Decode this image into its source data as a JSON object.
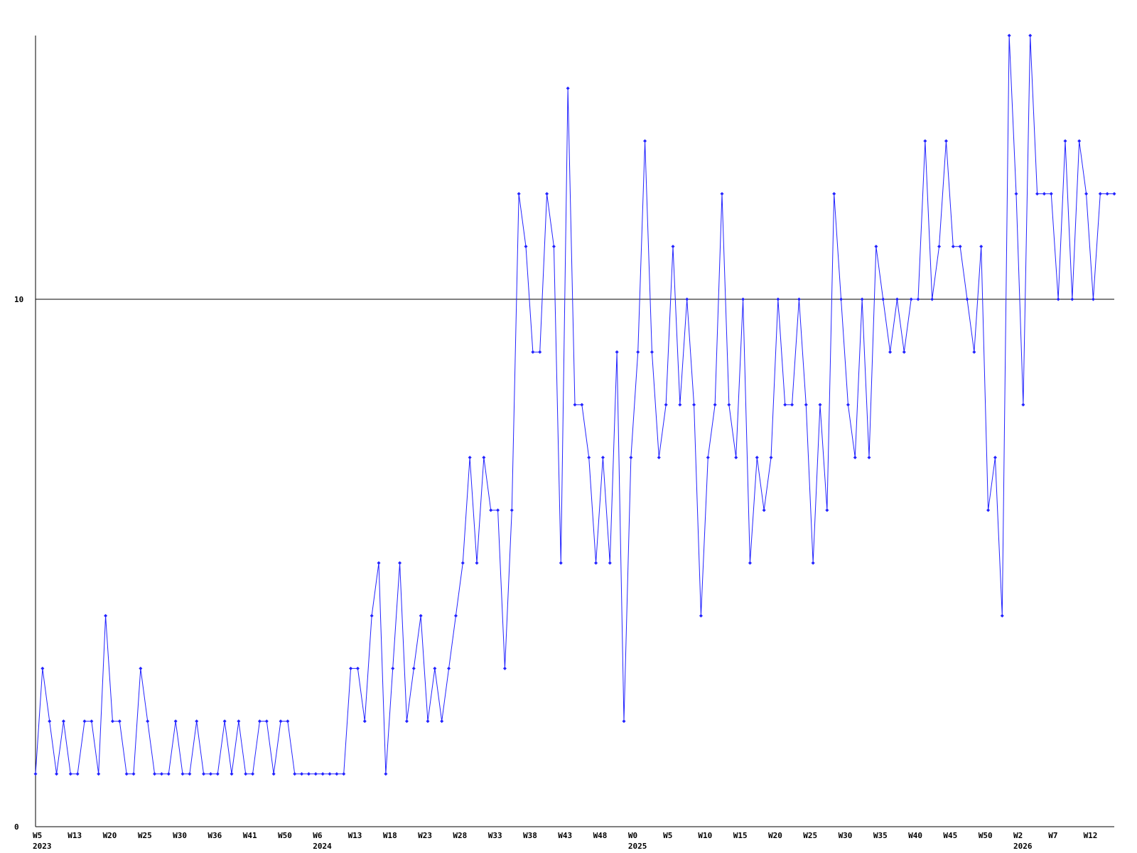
{
  "chart_data": {
    "type": "line",
    "color": "#2222ff",
    "axis_color": "#000000",
    "ylim": [
      0,
      15
    ],
    "yticks": [
      0,
      10
    ],
    "grid": true,
    "markers": true,
    "categories": [
      "W5",
      null,
      null,
      null,
      null,
      "W13",
      null,
      null,
      null,
      null,
      "W20",
      null,
      null,
      null,
      null,
      "W25",
      null,
      null,
      null,
      null,
      "W30",
      null,
      null,
      null,
      null,
      "W36",
      null,
      null,
      null,
      null,
      "W41",
      null,
      null,
      null,
      null,
      "W50",
      null,
      null,
      null,
      null,
      "W6",
      null,
      null,
      null,
      null,
      "W13",
      null,
      null,
      null,
      null,
      "W18",
      null,
      null,
      null,
      null,
      "W23",
      null,
      null,
      null,
      null,
      "W28",
      null,
      null,
      null,
      null,
      "W33",
      null,
      null,
      null,
      null,
      "W38",
      null,
      null,
      null,
      null,
      "W43",
      null,
      null,
      null,
      null,
      "W48",
      null,
      null,
      null,
      null,
      "W0",
      null,
      null,
      null,
      null,
      "W5",
      null,
      null,
      null,
      null,
      "W10",
      null,
      null,
      null,
      null,
      "W15",
      null,
      null,
      null,
      null,
      "W20",
      null,
      null,
      null,
      null,
      "W25",
      null,
      null,
      null,
      null,
      "W30",
      null,
      null,
      null,
      null,
      "W35",
      null,
      null,
      null,
      null,
      "W40",
      null,
      null,
      null,
      null,
      "W45",
      null,
      null,
      null,
      null,
      "W50",
      null,
      null,
      null,
      null,
      "W2",
      null,
      null,
      null,
      null,
      "W7",
      null,
      null,
      null,
      null,
      "W12",
      null,
      null,
      null,
      null
    ],
    "x_year_labels": [
      "2023",
      null,
      null,
      null,
      null,
      null,
      null,
      null,
      null,
      null,
      null,
      null,
      null,
      null,
      null,
      null,
      null,
      null,
      null,
      null,
      null,
      null,
      null,
      null,
      null,
      null,
      null,
      null,
      null,
      null,
      null,
      null,
      null,
      null,
      null,
      null,
      null,
      null,
      null,
      null,
      "2024",
      null,
      null,
      null,
      null,
      null,
      null,
      null,
      null,
      null,
      null,
      null,
      null,
      null,
      null,
      null,
      null,
      null,
      null,
      null,
      null,
      null,
      null,
      null,
      null,
      null,
      null,
      null,
      null,
      null,
      null,
      null,
      null,
      null,
      null,
      null,
      null,
      null,
      null,
      null,
      null,
      null,
      null,
      null,
      null,
      "2025",
      null,
      null,
      null,
      null,
      null,
      null,
      null,
      null,
      null,
      null,
      null,
      null,
      null,
      null,
      null,
      null,
      null,
      null,
      null,
      null,
      null,
      null,
      null,
      null,
      null,
      null,
      null,
      null,
      null,
      null,
      null,
      null,
      null,
      null,
      null,
      null,
      null,
      null,
      null,
      null,
      null,
      null,
      null,
      null,
      null,
      null,
      null,
      null,
      null,
      null,
      null,
      null,
      null,
      null,
      "2026",
      null,
      null,
      null,
      null,
      null,
      null,
      null,
      null,
      null,
      null,
      null,
      null,
      null,
      null
    ],
    "values": [
      1,
      3,
      2,
      1,
      2,
      1,
      1,
      2,
      2,
      1,
      4,
      2,
      2,
      1,
      1,
      3,
      2,
      1,
      1,
      1,
      2,
      1,
      1,
      2,
      1,
      1,
      1,
      2,
      1,
      2,
      1,
      1,
      2,
      2,
      1,
      2,
      2,
      1,
      1,
      1,
      1,
      1,
      1,
      1,
      1,
      3,
      3,
      2,
      4,
      5,
      1,
      3,
      5,
      2,
      3,
      4,
      2,
      3,
      2,
      3,
      4,
      5,
      7,
      5,
      7,
      6,
      6,
      3,
      6,
      12,
      11,
      9,
      9,
      12,
      11,
      5,
      14,
      8,
      8,
      7,
      5,
      7,
      5,
      9,
      2,
      7,
      9,
      13,
      9,
      7,
      8,
      11,
      8,
      10,
      8,
      4,
      7,
      8,
      12,
      8,
      7,
      10,
      5,
      7,
      6,
      7,
      10,
      8,
      8,
      10,
      8,
      5,
      8,
      6,
      12,
      10,
      8,
      7,
      10,
      7,
      11,
      10,
      9,
      10,
      9,
      10,
      10,
      13,
      10,
      11,
      13,
      11,
      11,
      10,
      9,
      11,
      6,
      7,
      4,
      15,
      12,
      8,
      15,
      12,
      12,
      12,
      10,
      13,
      10,
      13,
      12,
      10,
      12,
      12,
      12
    ]
  }
}
